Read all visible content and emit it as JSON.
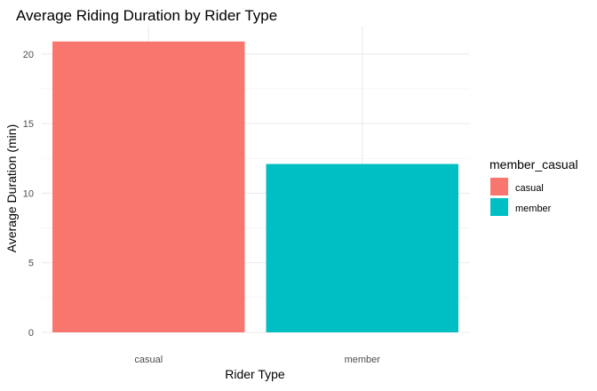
{
  "chart_data": {
    "type": "bar",
    "title": "Average Riding Duration by Rider Type",
    "xlabel": "Rider Type",
    "ylabel": "Average Duration (min)",
    "categories": [
      "casual",
      "member"
    ],
    "values": [
      20.9,
      12.1
    ],
    "colors": [
      "#F8766D",
      "#00BFC4"
    ],
    "ylim": [
      0,
      22
    ],
    "yticks": [
      0,
      5,
      10,
      15,
      20
    ],
    "grid": true,
    "legend": {
      "title": "member_casual",
      "placement": "right",
      "entries": [
        {
          "label": "casual",
          "color": "#F8766D"
        },
        {
          "label": "member",
          "color": "#00BFC4"
        }
      ]
    }
  }
}
